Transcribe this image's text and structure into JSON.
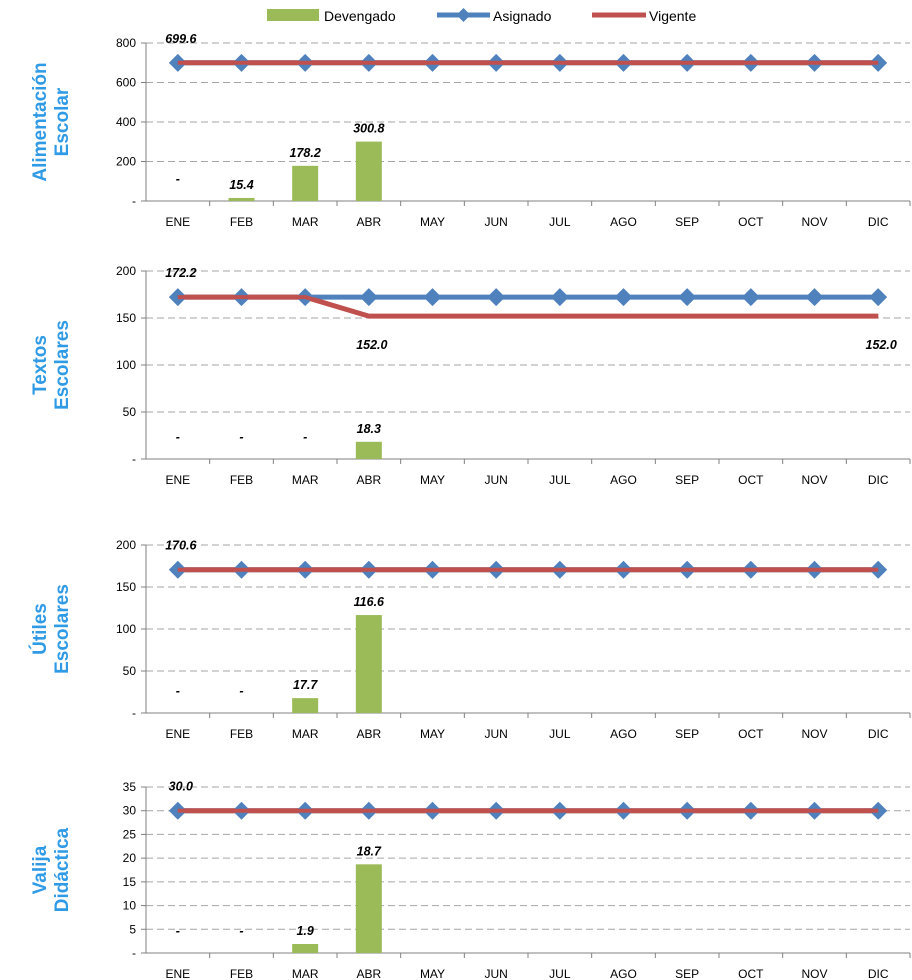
{
  "colors": {
    "devengado": "#9BBB59",
    "asignado": "#4F81BD",
    "vigente": "#C0504D",
    "title": "#2F9AE5",
    "grid": "#A6A6A6"
  },
  "legend": {
    "devengado": "Devengado",
    "asignado": "Asignado",
    "vigente": "Vigente"
  },
  "chart_data": [
    {
      "type": "bar+line",
      "ylabel": [
        "Alimentación",
        "Escolar"
      ],
      "categories": [
        "ENE",
        "FEB",
        "MAR",
        "ABR",
        "MAY",
        "JUN",
        "JUL",
        "AGO",
        "SEP",
        "OCT",
        "NOV",
        "DIC"
      ],
      "ylim": [
        0,
        800
      ],
      "yticks": [
        "-",
        "200",
        "400",
        "600",
        "800"
      ],
      "grid": true,
      "series": [
        {
          "name": "Devengado",
          "kind": "bar",
          "values": [
            0,
            15.4,
            178.2,
            300.8,
            null,
            null,
            null,
            null,
            null,
            null,
            null,
            null
          ]
        },
        {
          "name": "Asignado",
          "kind": "line",
          "values": [
            699.6,
            699.6,
            699.6,
            699.6,
            699.6,
            699.6,
            699.6,
            699.6,
            699.6,
            699.6,
            699.6,
            699.6
          ]
        },
        {
          "name": "Vigente",
          "kind": "line",
          "values": [
            699.6,
            699.6,
            699.6,
            699.6,
            699.6,
            699.6,
            699.6,
            699.6,
            699.6,
            699.6,
            699.6,
            699.6
          ]
        }
      ],
      "bar_labels": [
        "-",
        "15.4",
        "178.2",
        "300.8"
      ],
      "annotations": [
        {
          "text": "699.6",
          "x": "ENE",
          "y": 699.6,
          "pos": "above"
        }
      ]
    },
    {
      "type": "bar+line",
      "ylabel": [
        "Textos",
        "Escolares"
      ],
      "categories": [
        "ENE",
        "FEB",
        "MAR",
        "ABR",
        "MAY",
        "JUN",
        "JUL",
        "AGO",
        "SEP",
        "OCT",
        "NOV",
        "DIC"
      ],
      "ylim": [
        0,
        200
      ],
      "yticks": [
        "-",
        "50",
        "100",
        "150",
        "200"
      ],
      "grid": true,
      "series": [
        {
          "name": "Devengado",
          "kind": "bar",
          "values": [
            0,
            0,
            0,
            18.3,
            null,
            null,
            null,
            null,
            null,
            null,
            null,
            null
          ]
        },
        {
          "name": "Asignado",
          "kind": "line",
          "values": [
            172.2,
            172.2,
            172.2,
            172.2,
            172.2,
            172.2,
            172.2,
            172.2,
            172.2,
            172.2,
            172.2,
            172.2
          ]
        },
        {
          "name": "Vigente",
          "kind": "line",
          "values": [
            172.2,
            172.2,
            172.2,
            152.0,
            152.0,
            152.0,
            152.0,
            152.0,
            152.0,
            152.0,
            152.0,
            152.0
          ]
        }
      ],
      "bar_labels": [
        "-",
        "-",
        "-",
        "18.3"
      ],
      "annotations": [
        {
          "text": "172.2",
          "x": "ENE",
          "y": 172.2,
          "pos": "above"
        },
        {
          "text": "152.0",
          "x": "ABR",
          "y": 152.0,
          "pos": "below"
        },
        {
          "text": "152.0",
          "x": "DIC",
          "y": 152.0,
          "pos": "below"
        }
      ]
    },
    {
      "type": "bar+line",
      "ylabel": [
        "Útiles",
        "Escolares"
      ],
      "categories": [
        "ENE",
        "FEB",
        "MAR",
        "ABR",
        "MAY",
        "JUN",
        "JUL",
        "AGO",
        "SEP",
        "OCT",
        "NOV",
        "DIC"
      ],
      "ylim": [
        0,
        200
      ],
      "yticks": [
        "-",
        "50",
        "100",
        "150",
        "200"
      ],
      "grid": true,
      "series": [
        {
          "name": "Devengado",
          "kind": "bar",
          "values": [
            0,
            0,
            17.7,
            116.6,
            null,
            null,
            null,
            null,
            null,
            null,
            null,
            null
          ]
        },
        {
          "name": "Asignado",
          "kind": "line",
          "values": [
            170.6,
            170.6,
            170.6,
            170.6,
            170.6,
            170.6,
            170.6,
            170.6,
            170.6,
            170.6,
            170.6,
            170.6
          ]
        },
        {
          "name": "Vigente",
          "kind": "line",
          "values": [
            170.6,
            170.6,
            170.6,
            170.6,
            170.6,
            170.6,
            170.6,
            170.6,
            170.6,
            170.6,
            170.6,
            170.6
          ]
        }
      ],
      "bar_labels": [
        "-",
        "-",
        "17.7",
        "116.6"
      ],
      "annotations": [
        {
          "text": "170.6",
          "x": "ENE",
          "y": 170.6,
          "pos": "above"
        }
      ]
    },
    {
      "type": "bar+line",
      "ylabel": [
        "Valija",
        "Didáctica"
      ],
      "categories": [
        "ENE",
        "FEB",
        "MAR",
        "ABR",
        "MAY",
        "JUN",
        "JUL",
        "AGO",
        "SEP",
        "OCT",
        "NOV",
        "DIC"
      ],
      "ylim": [
        0,
        35
      ],
      "yticks": [
        "-",
        "5",
        "10",
        "15",
        "20",
        "25",
        "30",
        "35"
      ],
      "grid": true,
      "series": [
        {
          "name": "Devengado",
          "kind": "bar",
          "values": [
            0,
            0,
            1.9,
            18.7,
            null,
            null,
            null,
            null,
            null,
            null,
            null,
            null
          ]
        },
        {
          "name": "Asignado",
          "kind": "line",
          "values": [
            30.0,
            30.0,
            30.0,
            30.0,
            30.0,
            30.0,
            30.0,
            30.0,
            30.0,
            30.0,
            30.0,
            30.0
          ]
        },
        {
          "name": "Vigente",
          "kind": "line",
          "values": [
            30.0,
            30.0,
            30.0,
            30.0,
            30.0,
            30.0,
            30.0,
            30.0,
            30.0,
            30.0,
            30.0,
            30.0
          ]
        }
      ],
      "bar_labels": [
        "-",
        "-",
        "1.9",
        "18.7"
      ],
      "annotations": [
        {
          "text": "30.0",
          "x": "ENE",
          "y": 30.0,
          "pos": "above"
        }
      ]
    }
  ]
}
